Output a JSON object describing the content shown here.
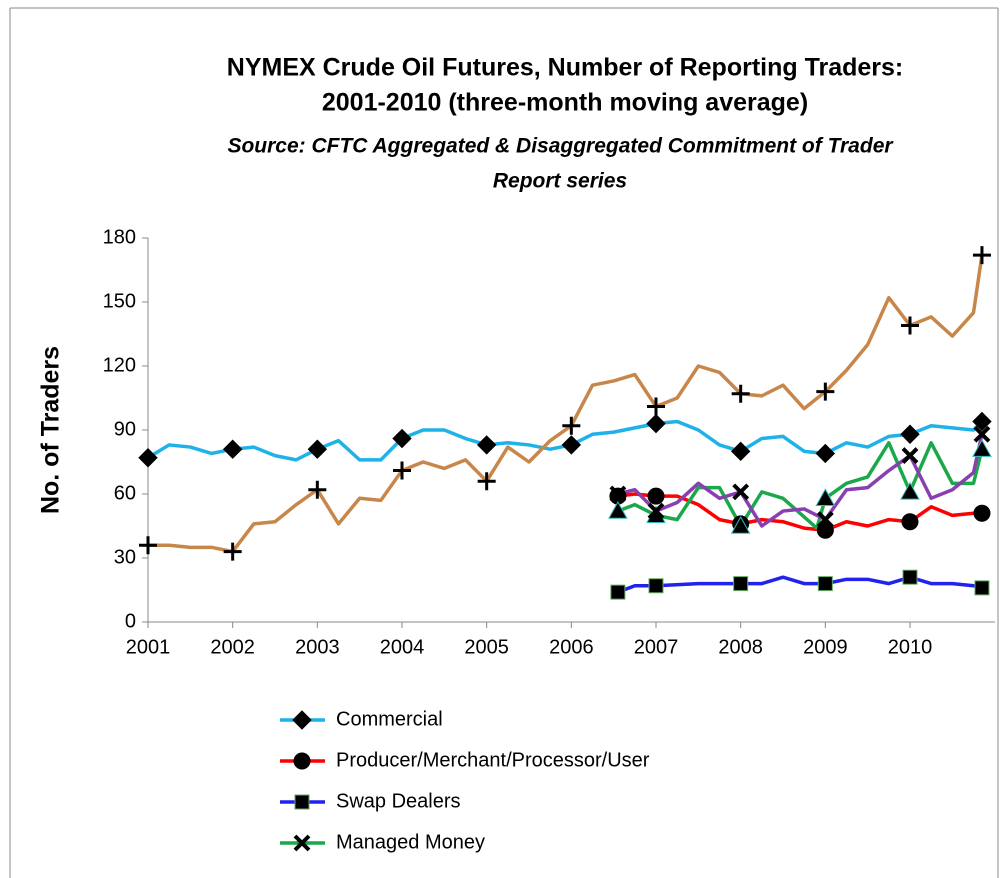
{
  "chart_data": {
    "type": "line",
    "title": [
      "NYMEX Crude Oil Futures, Number of Reporting Traders:",
      "2001-2010 (three-month moving average)"
    ],
    "subtitle": [
      "Source:  CFTC Aggregated & Disaggregated Commitment of Trader",
      "Report series"
    ],
    "y_label": "No. of Traders",
    "xlim": [
      2001,
      2011
    ],
    "xticks": [
      2001,
      2002,
      2003,
      2004,
      2005,
      2006,
      2007,
      2008,
      2009,
      2010
    ],
    "ylim": [
      0,
      180
    ],
    "yticks": [
      0,
      30,
      60,
      90,
      120,
      150,
      180
    ],
    "grid": false,
    "series": [
      {
        "name": "Commercial",
        "color": "#1fb2e8",
        "marker": "diamond",
        "x": [
          2001,
          2001.25,
          2001.5,
          2001.75,
          2002,
          2002.25,
          2002.5,
          2002.75,
          2003,
          2003.25,
          2003.5,
          2003.75,
          2004,
          2004.25,
          2004.5,
          2004.75,
          2005,
          2005.25,
          2005.5,
          2005.75,
          2006,
          2006.25,
          2006.5,
          2006.75,
          2007,
          2007.25,
          2007.5,
          2007.75,
          2008,
          2008.25,
          2008.5,
          2008.75,
          2009,
          2009.25,
          2009.5,
          2009.75,
          2010,
          2010.25,
          2010.5,
          2010.75,
          2010.85
        ],
        "values": [
          77,
          83,
          82,
          79,
          81,
          82,
          78,
          76,
          81,
          85,
          76,
          76,
          86,
          90,
          90,
          86,
          83,
          84,
          83,
          81,
          83,
          88,
          89,
          91,
          93,
          94,
          90,
          83,
          80,
          86,
          87,
          80,
          79,
          84,
          82,
          87,
          88,
          92,
          91,
          90,
          94
        ]
      },
      {
        "color": "#c8874a",
        "marker": "plus",
        "x": [
          2001,
          2001.25,
          2001.5,
          2001.75,
          2002,
          2002.25,
          2002.5,
          2002.75,
          2003,
          2003.25,
          2003.5,
          2003.75,
          2004,
          2004.25,
          2004.5,
          2004.75,
          2005,
          2005.25,
          2005.5,
          2005.75,
          2006,
          2006.25,
          2006.5,
          2006.75,
          2007,
          2007.25,
          2007.5,
          2007.75,
          2008,
          2008.25,
          2008.5,
          2008.75,
          2009,
          2009.25,
          2009.5,
          2009.75,
          2010,
          2010.25,
          2010.5,
          2010.75,
          2010.85
        ],
        "values": [
          36,
          36,
          35,
          35,
          33,
          46,
          47,
          55,
          62,
          46,
          58,
          57,
          71,
          75,
          72,
          76,
          66,
          82,
          75,
          85,
          92,
          111,
          113,
          116,
          101,
          105,
          120,
          117,
          107,
          106,
          111,
          100,
          108,
          118,
          130,
          152,
          139,
          143,
          134,
          145,
          172
        ]
      },
      {
        "name": "Producer/Merchant/Processor/User",
        "color": "#ff0000",
        "marker": "circle",
        "x": [
          2006.55,
          2006.75,
          2007,
          2007.25,
          2007.5,
          2007.75,
          2008,
          2008.25,
          2008.5,
          2008.75,
          2009,
          2009.25,
          2009.5,
          2009.75,
          2010,
          2010.25,
          2010.5,
          2010.75,
          2010.85
        ],
        "values": [
          59,
          60,
          59,
          59,
          55,
          48,
          46,
          48,
          47,
          44,
          43,
          47,
          45,
          48,
          47,
          54,
          50,
          51,
          51
        ]
      },
      {
        "name": "Swap Dealers",
        "color": "#2222ee",
        "marker": "square",
        "x": [
          2006.55,
          2006.75,
          2007,
          2007.5,
          2008,
          2008.25,
          2008.5,
          2008.75,
          2009,
          2009.25,
          2009.5,
          2009.75,
          2010,
          2010.25,
          2010.5,
          2010.75,
          2010.85
        ],
        "values": [
          14,
          17,
          17,
          18,
          18,
          18,
          21,
          18,
          18,
          20,
          20,
          18,
          21,
          18,
          18,
          17,
          16
        ]
      },
      {
        "name": "Managed Money",
        "color": "#1aa84a",
        "marker": "triangle",
        "legend_marker": "x",
        "x": [
          2006.55,
          2006.75,
          2007,
          2007.25,
          2007.5,
          2007.75,
          2008,
          2008.25,
          2008.5,
          2008.9,
          2009,
          2009.25,
          2009.5,
          2009.75,
          2010,
          2010.25,
          2010.5,
          2010.75,
          2010.85
        ],
        "values": [
          52,
          55,
          50,
          48,
          63,
          63,
          45,
          61,
          58,
          44,
          58,
          65,
          68,
          84,
          61,
          84,
          65,
          65,
          81
        ]
      },
      {
        "color": "#8a3fb0",
        "marker": "x",
        "x": [
          2006.55,
          2006.75,
          2007,
          2007.25,
          2007.5,
          2007.75,
          2008,
          2008.25,
          2008.5,
          2008.75,
          2009,
          2009.25,
          2009.5,
          2009.75,
          2010,
          2010.25,
          2010.5,
          2010.75,
          2010.85
        ],
        "values": [
          60,
          62,
          52,
          56,
          65,
          58,
          61,
          45,
          52,
          53,
          48,
          62,
          63,
          71,
          78,
          58,
          62,
          70,
          88
        ]
      }
    ]
  }
}
